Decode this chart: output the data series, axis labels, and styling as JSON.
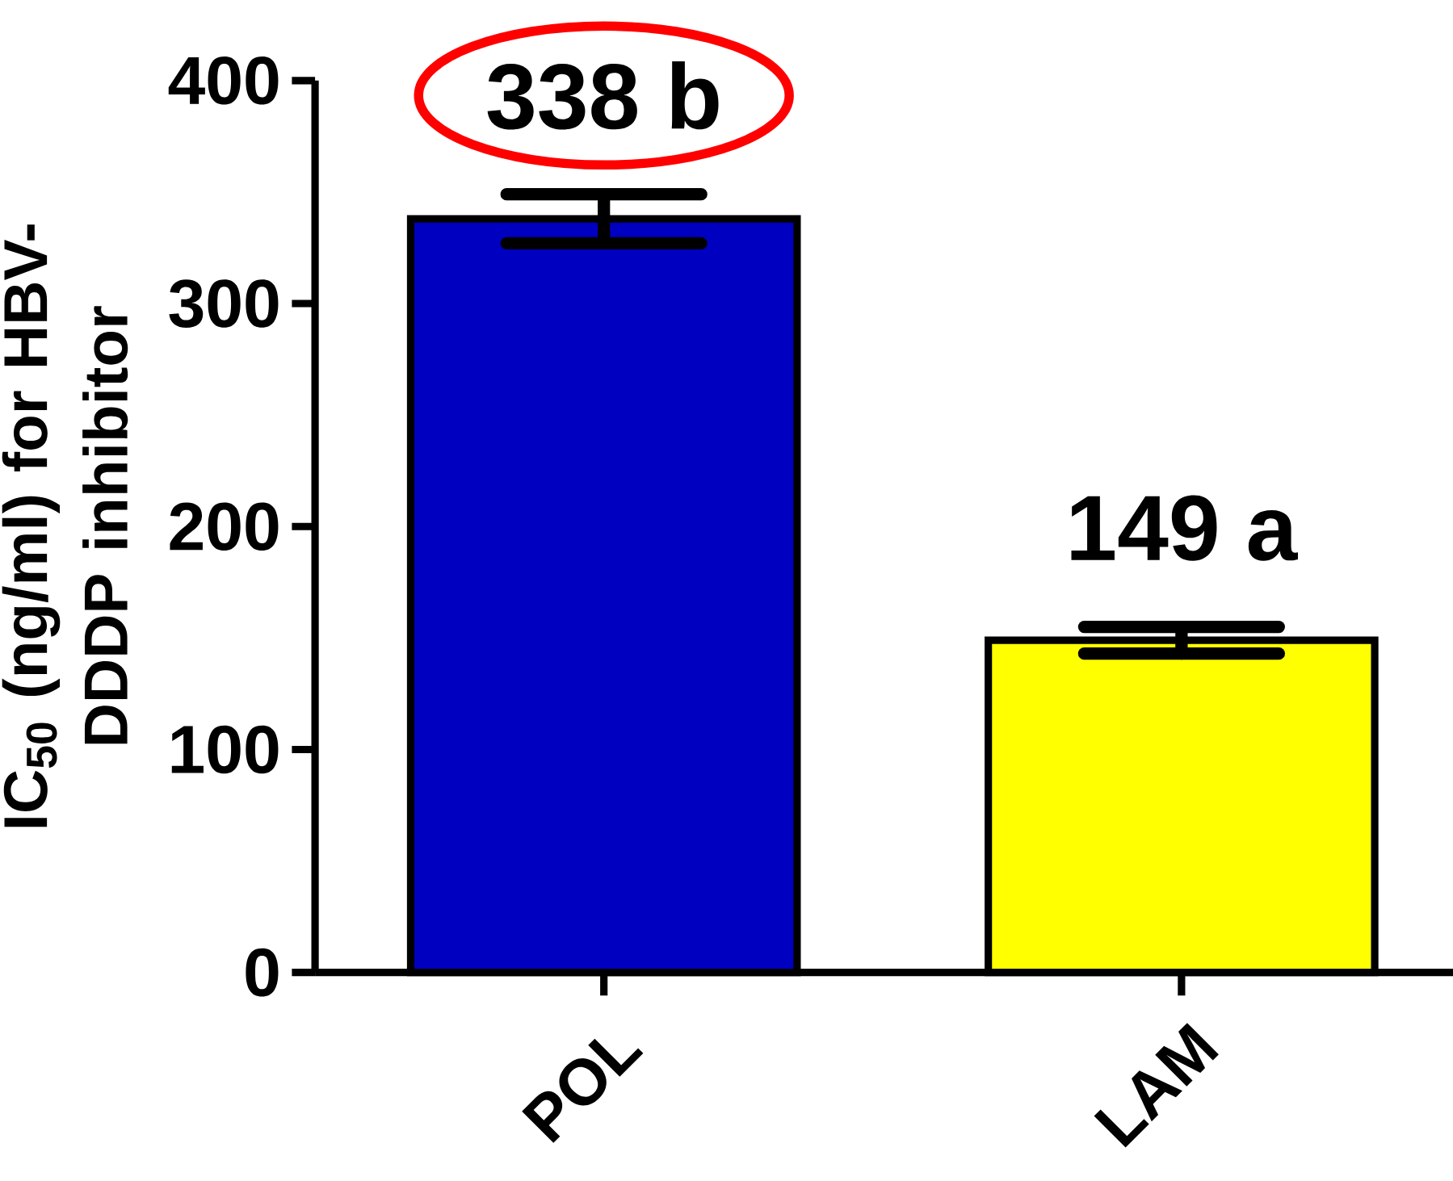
{
  "chart_data": {
    "type": "bar",
    "categories": [
      "POL",
      "LAM"
    ],
    "values": [
      338,
      149
    ],
    "errors": [
      11,
      6
    ],
    "colors": [
      "#0000c0",
      "#ffff00"
    ],
    "value_labels": [
      "338 b",
      "149 a"
    ],
    "ylabel": "IC$_{50}$ (ng/ml) for HBV-DDDP inhibitor",
    "ylim": [
      0,
      400
    ],
    "yticks": [
      0,
      100,
      200,
      300,
      400
    ],
    "grid": false
  }
}
